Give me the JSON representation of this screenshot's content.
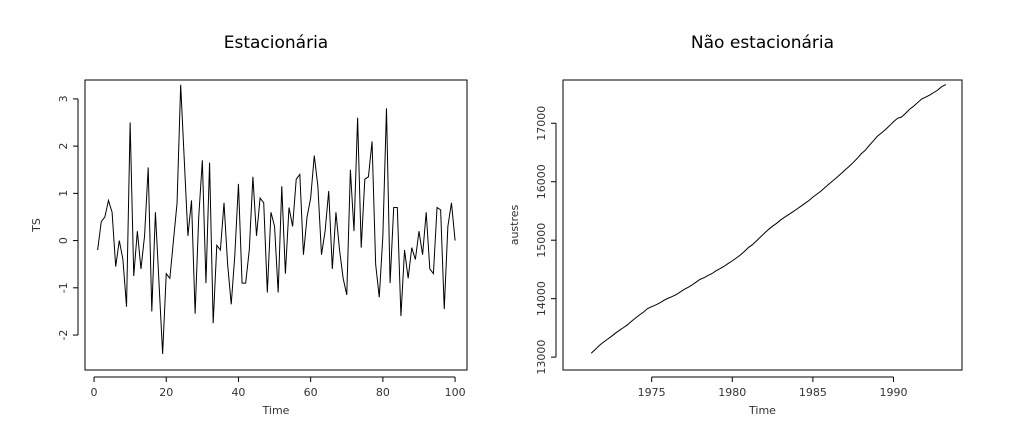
{
  "chart_data": [
    {
      "type": "line",
      "title": "Estacionária",
      "x_label": "Time",
      "y_label": "TS",
      "color": "#000000",
      "x": [
        1,
        2,
        3,
        4,
        5,
        6,
        7,
        8,
        9,
        10,
        11,
        12,
        13,
        14,
        15,
        16,
        17,
        18,
        19,
        20,
        21,
        22,
        23,
        24,
        25,
        26,
        27,
        28,
        29,
        30,
        31,
        32,
        33,
        34,
        35,
        36,
        37,
        38,
        39,
        40,
        41,
        42,
        43,
        44,
        45,
        46,
        47,
        48,
        49,
        50,
        51,
        52,
        53,
        54,
        55,
        56,
        57,
        58,
        59,
        60,
        61,
        62,
        63,
        64,
        65,
        66,
        67,
        68,
        69,
        70,
        71,
        72,
        73,
        74,
        75,
        76,
        77,
        78,
        79,
        80,
        81,
        82,
        83,
        84,
        85,
        86,
        87,
        88,
        89,
        90,
        91,
        92,
        93,
        94,
        95,
        96,
        97,
        98,
        99,
        100
      ],
      "values": [
        -0.2,
        0.4,
        0.5,
        0.85,
        0.6,
        -0.55,
        0,
        -0.4,
        -1.4,
        2.5,
        -0.75,
        0.2,
        -0.6,
        0.1,
        1.55,
        -1.5,
        0.6,
        -0.9,
        -2.4,
        -0.7,
        -0.8,
        0,
        0.8,
        3.3,
        1.7,
        0.1,
        0.85,
        -1.55,
        0.5,
        1.7,
        -0.9,
        1.65,
        -1.75,
        -0.1,
        -0.2,
        0.8,
        -0.5,
        -1.35,
        -0.3,
        1.2,
        -0.9,
        -0.9,
        -0.2,
        1.35,
        0.1,
        0.9,
        0.8,
        -1.1,
        0.6,
        0.3,
        -1.1,
        1.15,
        -0.7,
        0.7,
        0.3,
        1.3,
        1.4,
        -0.3,
        0.5,
        0.9,
        1.8,
        1.15,
        -0.3,
        0.2,
        1.05,
        -0.6,
        0.6,
        -0.2,
        -0.8,
        -1.15,
        1.5,
        0.2,
        2.6,
        -0.15,
        1.3,
        1.35,
        2.1,
        -0.5,
        -1.2,
        0.1,
        2.8,
        -0.9,
        0.7,
        0.7,
        -1.6,
        -0.2,
        -0.8,
        -0.15,
        -0.4,
        0.2,
        -0.3,
        0.6,
        -0.6,
        -0.7,
        0.7,
        0.65,
        -1.45,
        0.3,
        0.8,
        0
      ],
      "xlim": [
        -2.5,
        103.3
      ],
      "ylim": [
        -2.74,
        3.4
      ],
      "xticks": [
        0,
        20,
        40,
        60,
        80,
        100
      ],
      "yticks": [
        -2,
        -1,
        0,
        1,
        2,
        3
      ]
    },
    {
      "type": "line",
      "title": "Não estacionária",
      "x_label": "Time",
      "y_label": "austres",
      "color": "#000000",
      "x": [
        1971.25,
        1971.5,
        1971.75,
        1972,
        1972.25,
        1972.5,
        1972.75,
        1973,
        1973.25,
        1973.5,
        1973.75,
        1974,
        1974.25,
        1974.5,
        1974.75,
        1975,
        1975.25,
        1975.5,
        1975.75,
        1976,
        1976.25,
        1976.5,
        1976.75,
        1977,
        1977.25,
        1977.5,
        1977.75,
        1978,
        1978.25,
        1978.5,
        1978.75,
        1979,
        1979.25,
        1979.5,
        1979.75,
        1980,
        1980.25,
        1980.5,
        1980.75,
        1981,
        1981.25,
        1981.5,
        1981.75,
        1982,
        1982.25,
        1982.5,
        1982.75,
        1983,
        1983.25,
        1983.5,
        1983.75,
        1984,
        1984.25,
        1984.5,
        1984.75,
        1985,
        1985.25,
        1985.5,
        1985.75,
        1986,
        1986.25,
        1986.5,
        1986.75,
        1987,
        1987.25,
        1987.5,
        1987.75,
        1988,
        1988.25,
        1988.5,
        1988.75,
        1989,
        1989.25,
        1989.5,
        1989.75,
        1990,
        1990.25,
        1990.5,
        1990.75,
        1991,
        1991.25,
        1991.5,
        1991.75,
        1992,
        1992.25,
        1992.5,
        1992.75,
        1993,
        1993.25
      ],
      "values": [
        13067.3,
        13130.5,
        13198.4,
        13254.2,
        13303.7,
        13353.9,
        13409.3,
        13459.2,
        13504.5,
        13552.6,
        13614.3,
        13669.5,
        13722.6,
        13772.1,
        13832.0,
        13862.6,
        13893.0,
        13926.8,
        13968.9,
        14004.7,
        14033.1,
        14066.0,
        14110.1,
        14155.6,
        14192.2,
        14231.7,
        14281.5,
        14330.3,
        14359.3,
        14396.6,
        14430.8,
        14478.4,
        14515.7,
        14554.9,
        14602.5,
        14646.4,
        14695.4,
        14746.6,
        14807.4,
        14874.4,
        14923.3,
        14988.7,
        15054.1,
        15121.7,
        15184.2,
        15239.3,
        15288.9,
        15346.2,
        15393.5,
        15439.0,
        15483.5,
        15531.5,
        15579.4,
        15628.5,
        15677.3,
        15736.7,
        15788.3,
        15839.7,
        15900.6,
        15961.5,
        16018.3,
        16076.9,
        16139.0,
        16203.0,
        16263.3,
        16327.9,
        16398.9,
        16478.3,
        16538.2,
        16621.6,
        16697.0,
        16777.2,
        16833.1,
        16891.6,
        16956.8,
        17026.3,
        17085.4,
        17106.9,
        17169.4,
        17239.4,
        17292.0,
        17354.2,
        17414.2,
        17447.3,
        17482.6,
        17526.0,
        17568.7,
        17627.1,
        17661.5
      ],
      "xlim": [
        1969.5,
        1994.25
      ],
      "ylim": [
        12780,
        17740
      ],
      "xticks": [
        1975,
        1980,
        1985,
        1990
      ],
      "yticks": [
        13000,
        14000,
        15000,
        16000,
        17000
      ]
    }
  ]
}
